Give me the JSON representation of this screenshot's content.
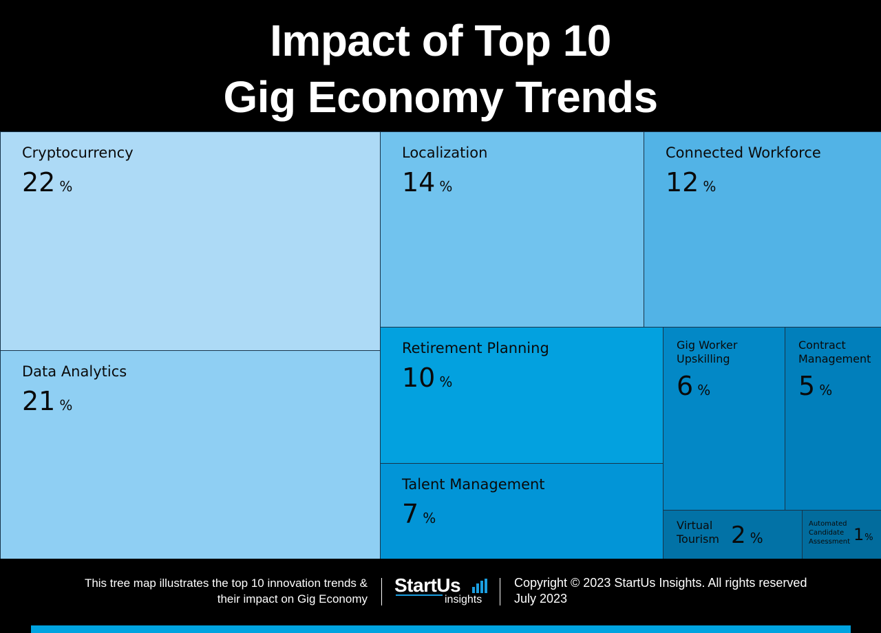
{
  "chart_data": {
    "type": "treemap",
    "title": [
      "Impact of Top 10",
      "Gig Economy Trends"
    ],
    "unit": "%",
    "items": [
      {
        "label": "Cryptocurrency",
        "value": 22,
        "color": "#addaf6"
      },
      {
        "label": "Data Analytics",
        "value": 21,
        "color": "#8fcff3"
      },
      {
        "label": "Localization",
        "value": 14,
        "color": "#71c3ee"
      },
      {
        "label": "Connected Workforce",
        "value": 12,
        "color": "#52b3e6"
      },
      {
        "label": "Retirement Planning",
        "value": 10,
        "color": "#03a1df"
      },
      {
        "label": "Talent Management",
        "value": 7,
        "color": "#0295d7"
      },
      {
        "label": "Gig Worker Upskilling",
        "value": 6,
        "color": "#0388c6"
      },
      {
        "label": "Contract Management",
        "value": 5,
        "color": "#017fbb"
      },
      {
        "label": "Virtual Tourism",
        "value": 2,
        "color": "#0272a6"
      },
      {
        "label": "Automated Candidate Assessment",
        "value": 1,
        "color": "#026c9d"
      }
    ]
  },
  "footer": {
    "description": [
      "This tree map illustrates the top 10 innovation trends &",
      "their impact on Gig Economy"
    ],
    "logo": {
      "word": "StartUs",
      "sub": "insights"
    },
    "copyright": "Copyright © 2023 StartUs Insights. All rights reserved",
    "date": "July 2023"
  },
  "colors": {
    "background": "#000000",
    "accent": "#00a3e0",
    "border": "#17344a"
  }
}
